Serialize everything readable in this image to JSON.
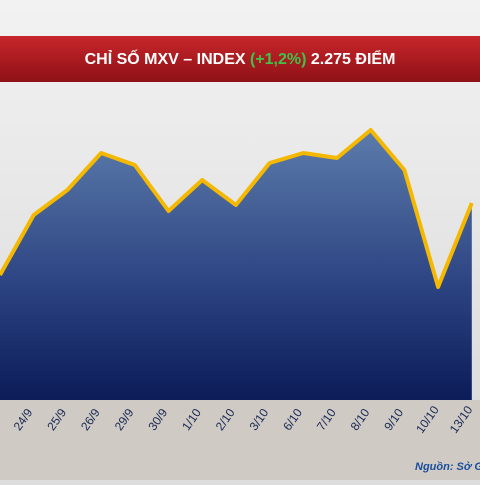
{
  "chart_data": {
    "type": "area",
    "title": {
      "prefix": "CHỈ SỐ MXV – INDEX",
      "change": "(+1,2%)",
      "suffix": "2.275 ĐIỂM"
    },
    "categories": [
      null,
      "24/9",
      "25/9",
      "26/9",
      "29/9",
      "30/9",
      "1/10",
      "2/10",
      "3/10",
      "6/10",
      "7/10",
      "8/10",
      "9/10",
      "10/10",
      "13/10"
    ],
    "values": [
      125,
      185,
      210,
      247,
      235,
      189,
      220,
      195,
      237,
      247,
      242,
      270,
      230,
      113,
      197
    ],
    "ylim": [
      0,
      300
    ],
    "line_color": "#f5b800",
    "change_color": "#3fc24a",
    "source": "Nguồn: Sở G"
  }
}
